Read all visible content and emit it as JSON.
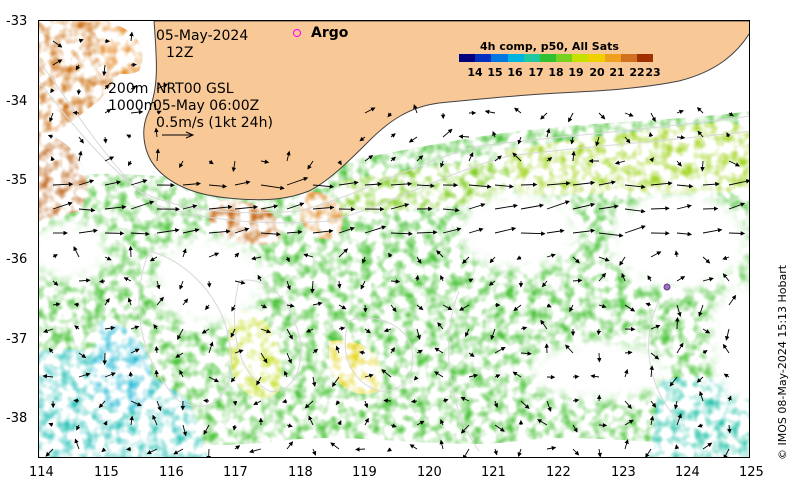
{
  "title_block": {
    "date": "05-May-2024",
    "hour": "12Z",
    "contour_label_200": "200m",
    "contour_label_1000": "1000m",
    "current_source": "NRT00 GSL",
    "current_time": "05-May 06:00Z",
    "vector_scale": "0.5m/s (1kt 24h)"
  },
  "argo": {
    "label": "Argo",
    "marker_color": "#ff00ff"
  },
  "legend": {
    "title": "4h comp, p50, All Sats",
    "ticks": [
      "14",
      "15",
      "16",
      "17",
      "18",
      "19",
      "20",
      "21",
      "22",
      "23"
    ],
    "colors": [
      "#00007f",
      "#0030c0",
      "#0078e0",
      "#00b4e0",
      "#20c8a0",
      "#30c030",
      "#78d020",
      "#c8e000",
      "#f0d000",
      "#f0a020",
      "#d07020",
      "#a03000"
    ]
  },
  "axes": {
    "lat_labels": [
      "-33",
      "-34",
      "-35",
      "-36",
      "-37",
      "-38"
    ],
    "lon_labels": [
      "114",
      "115",
      "116",
      "117",
      "118",
      "119",
      "120",
      "121",
      "122",
      "123",
      "124",
      "125"
    ]
  },
  "colors": {
    "land": "#f9c897",
    "coast": "#404040",
    "no_data": "#ffffff"
  },
  "credit": "© IMOS 08-May-2024 15:13 Hobart"
}
